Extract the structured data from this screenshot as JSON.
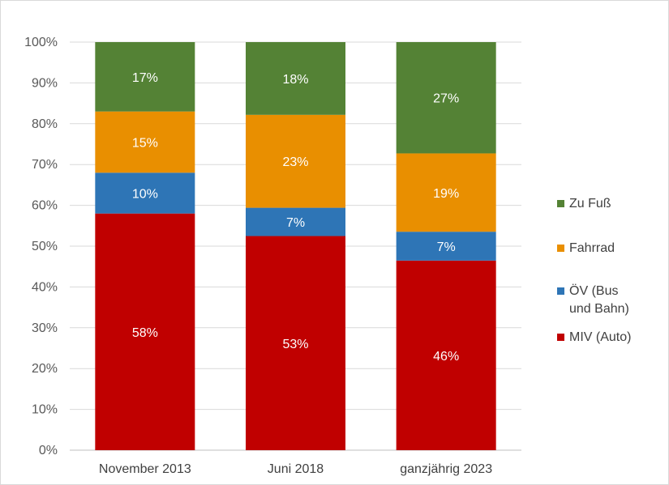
{
  "chart_data": {
    "type": "bar",
    "stacked": true,
    "percent_stacked": true,
    "categories": [
      "November 2013",
      "Juni 2018",
      "ganzjährig 2023"
    ],
    "series": [
      {
        "name": "MIV (Auto)",
        "values": [
          58,
          53,
          46
        ],
        "labels": [
          "58%",
          "53%",
          "46%"
        ],
        "color": "#C00000"
      },
      {
        "name": "ÖV (Bus und Bahn)",
        "name_lines": [
          "ÖV (Bus",
          "und Bahn)"
        ],
        "values": [
          10,
          7,
          7
        ],
        "labels": [
          "10%",
          "7%",
          "7%"
        ],
        "color": "#2E75B6"
      },
      {
        "name": "Fahrrad",
        "values": [
          15,
          23,
          19
        ],
        "labels": [
          "15%",
          "23%",
          "19%"
        ],
        "color": "#E98F00"
      },
      {
        "name": "Zu Fuß",
        "values": [
          17,
          18,
          27
        ],
        "labels": [
          "17%",
          "18%",
          "27%"
        ],
        "color": "#548235"
      }
    ],
    "yticks": [
      "0%",
      "10%",
      "20%",
      "30%",
      "40%",
      "50%",
      "60%",
      "70%",
      "80%",
      "90%",
      "100%"
    ],
    "ylim": [
      0,
      100
    ],
    "grid": true,
    "legend": "right",
    "title": "",
    "xlabel": "",
    "ylabel": ""
  }
}
